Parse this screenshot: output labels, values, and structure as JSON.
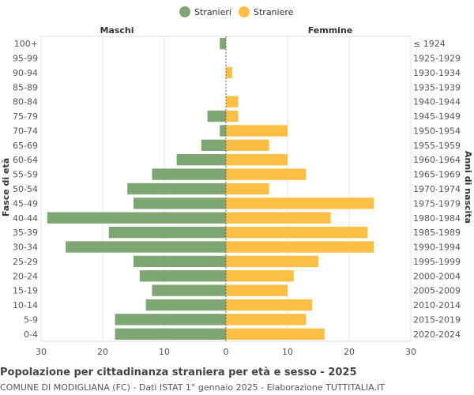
{
  "chart_data": {
    "type": "bar",
    "orientation": "horizontal-population-pyramid",
    "title": "Popolazione per cittadinanza straniera per età e sesso - 2025",
    "subtitle": "COMUNE DI MODIGLIANA (FC) - Dati ISTAT 1° gennaio 2025 - Elaborazione TUTTITALIA.IT",
    "left_label": "Maschi",
    "right_label": "Femmine",
    "ylabel_left": "Fasce di età",
    "ylabel_right": "Anni di nascita",
    "xlim": [
      -30,
      30
    ],
    "x_ticks": [
      "30",
      "20",
      "10",
      "0",
      "10",
      "20",
      "30"
    ],
    "grid": true,
    "legend_position": "top-center",
    "age_groups": [
      "100+",
      "95-99",
      "90-94",
      "85-89",
      "80-84",
      "75-79",
      "70-74",
      "65-69",
      "60-64",
      "55-59",
      "50-54",
      "45-49",
      "40-44",
      "35-39",
      "30-34",
      "25-29",
      "20-24",
      "15-19",
      "10-14",
      "5-9",
      "0-4"
    ],
    "birth_years": [
      "≤ 1924",
      "1925-1929",
      "1930-1934",
      "1935-1939",
      "1940-1944",
      "1945-1949",
      "1950-1954",
      "1955-1959",
      "1960-1964",
      "1965-1969",
      "1970-1974",
      "1975-1979",
      "1980-1984",
      "1985-1989",
      "1990-1994",
      "1995-1999",
      "2000-2004",
      "2005-2009",
      "2010-2014",
      "2015-2019",
      "2020-2024"
    ],
    "series": [
      {
        "name": "Stranieri",
        "color": "#7da672",
        "values": [
          1,
          0,
          0,
          0,
          0,
          3,
          1,
          4,
          8,
          12,
          16,
          15,
          29,
          19,
          26,
          15,
          14,
          12,
          13,
          18,
          18
        ]
      },
      {
        "name": "Straniere",
        "color": "#fcbe43",
        "values": [
          0,
          0,
          1,
          0,
          2,
          2,
          10,
          7,
          10,
          13,
          7,
          24,
          17,
          23,
          24,
          15,
          11,
          10,
          14,
          13,
          16
        ]
      }
    ]
  }
}
